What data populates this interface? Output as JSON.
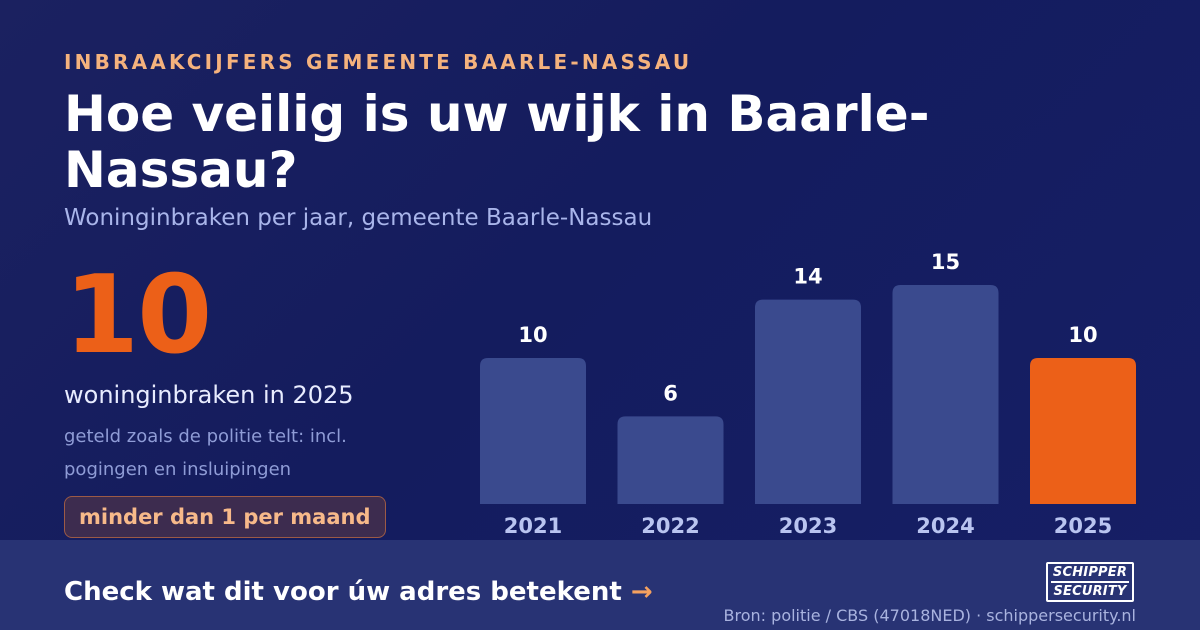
{
  "header": {
    "eyebrow": "INBRAAKCIJFERS GEMEENTE BAARLE-NASSAU",
    "title": "Hoe veilig is uw wijk in Baarle-Nassau?",
    "subtitle": "Woninginbraken per jaar, gemeente Baarle-Nassau"
  },
  "highlight": {
    "value": "10",
    "label": "woninginbraken in 2025",
    "note": "geteld zoals de politie telt: incl. pogingen en insluipingen",
    "badge": "minder dan 1 per maand"
  },
  "chart_data": {
    "type": "bar",
    "categories": [
      "2021",
      "2022",
      "2023",
      "2024",
      "2025"
    ],
    "values": [
      10,
      6,
      14,
      15,
      10
    ],
    "title": "",
    "xlabel": "",
    "ylabel": "",
    "highlight_category": "2025",
    "bar_color": "#3a4a8e",
    "highlight_color": "#ec6018",
    "grid": false
  },
  "footer": {
    "cta": "Check wat dit voor úw adres betekent",
    "cta_arrow": "→",
    "source": "Bron: politie / CBS (47018NED) · schippersecurity.nl",
    "logo": {
      "line1": "SCHIPPER",
      "line2": "SECURITY"
    }
  },
  "colors": {
    "background": "#161e62",
    "accent": "#ec6018",
    "eyebrow": "#f5b27d",
    "footer_bg": "#283374"
  }
}
